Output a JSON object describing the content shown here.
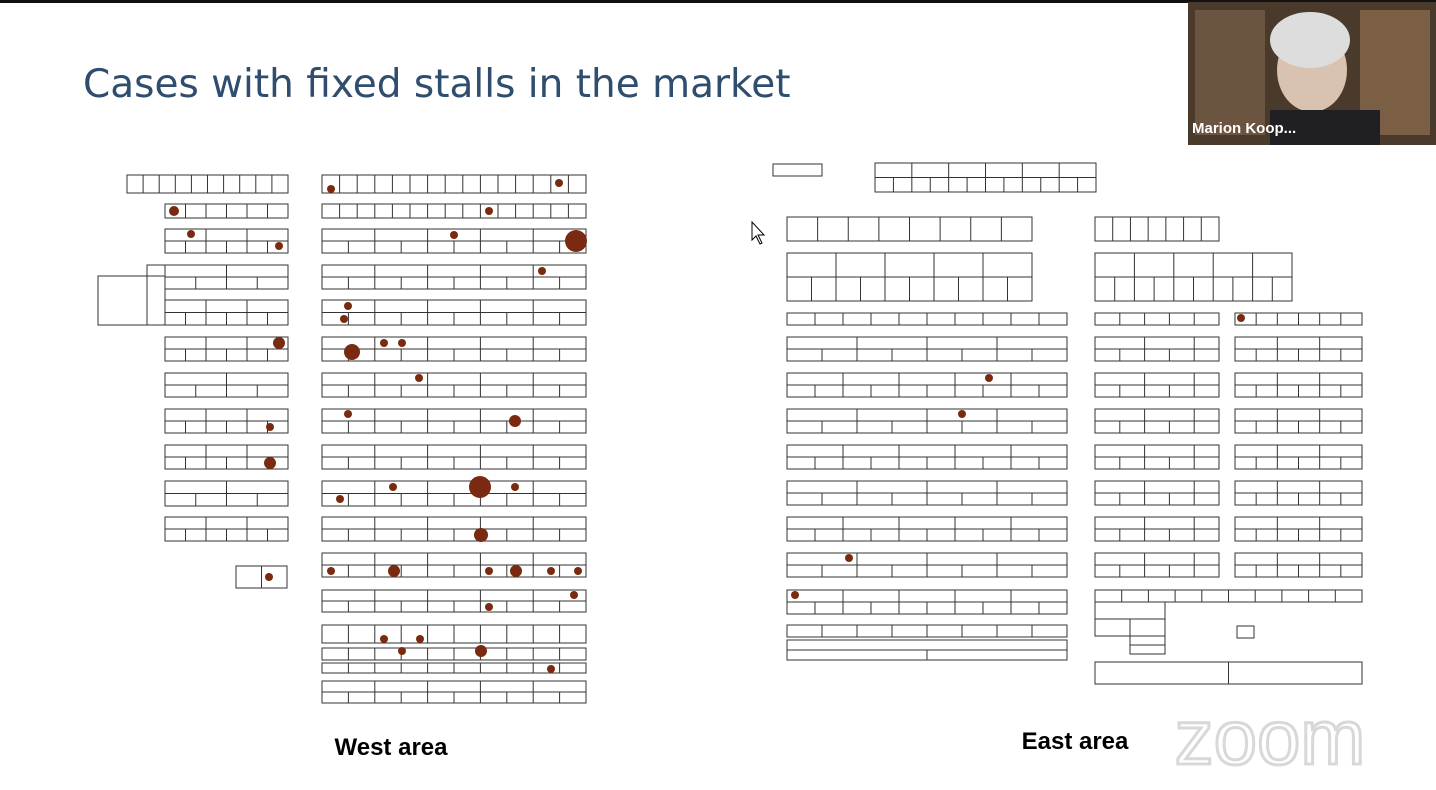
{
  "slide": {
    "title": "Cases with fixed stalls in the market",
    "west_label": "West area",
    "east_label": "East area"
  },
  "video": {
    "participant_name": "Marion Koop..."
  },
  "watermark": "zoom"
}
